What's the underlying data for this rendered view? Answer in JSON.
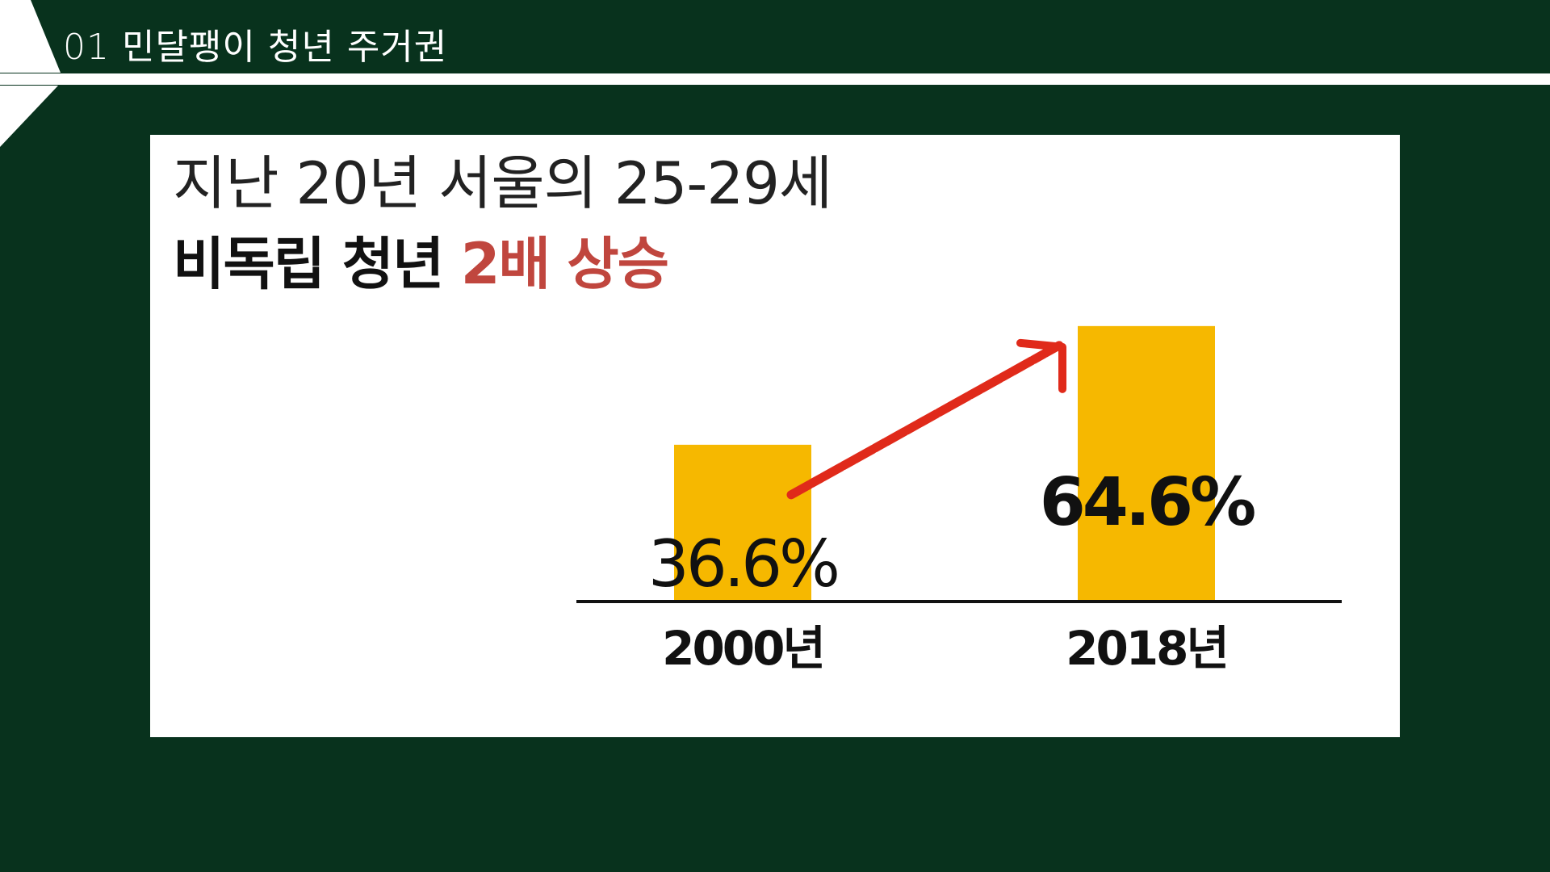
{
  "header": {
    "title": "01 민달팽이 청년 주거권"
  },
  "slide": {
    "headline": "지난 20년 서울의 25-29세",
    "subhead_black": "비독립 청년",
    "subhead_red": "2배 상승"
  },
  "colors": {
    "background": "#08321d",
    "bar": "#f6b800",
    "arrow": "#e02a1a",
    "accent_red": "#c0463e"
  },
  "chart_data": {
    "type": "bar",
    "categories": [
      "2000년",
      "2018년"
    ],
    "values": [
      36.6,
      64.6
    ],
    "value_labels": [
      "36.6%",
      "64.6%"
    ],
    "title": "",
    "xlabel": "",
    "ylabel": "",
    "ylim": [
      0,
      80
    ],
    "grid": false,
    "annotations": [
      "upward-trend-arrow"
    ]
  }
}
